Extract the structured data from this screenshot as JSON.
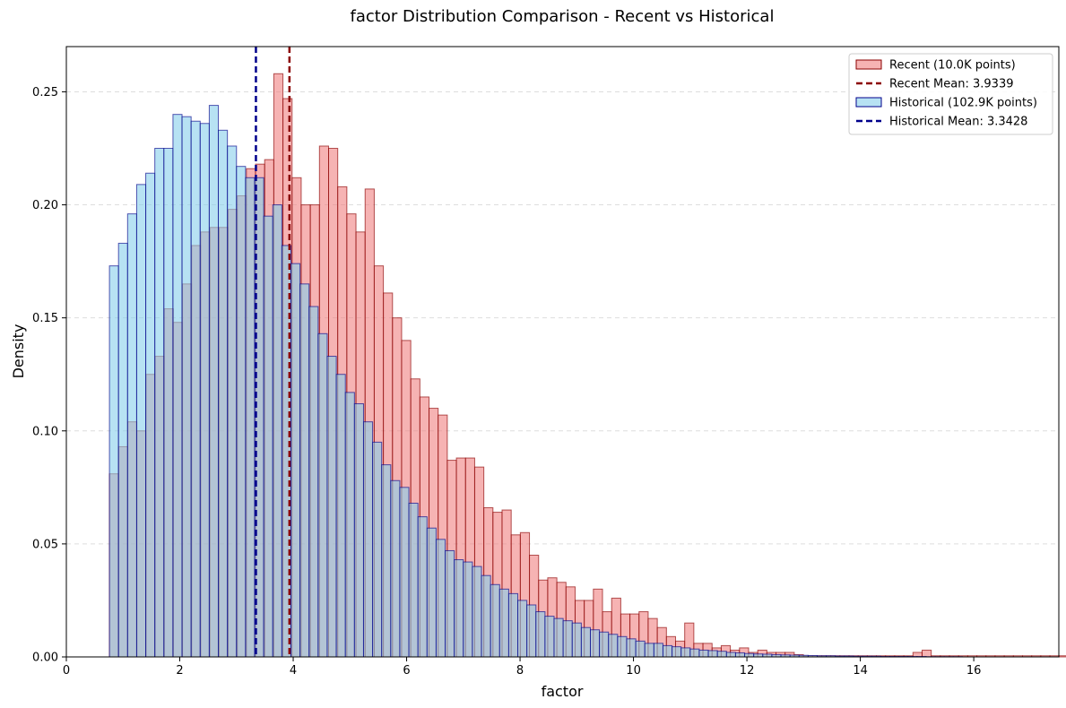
{
  "chart_data": {
    "type": "bar",
    "title": "factor Distribution Comparison - Recent vs Historical",
    "xlabel": "factor",
    "ylabel": "Density",
    "xlim": [
      0,
      17.5
    ],
    "ylim": [
      0,
      0.27
    ],
    "xticks": [
      0,
      2,
      4,
      6,
      8,
      10,
      12,
      14,
      16
    ],
    "yticks": [
      0.0,
      0.05,
      0.1,
      0.15,
      0.2,
      0.25
    ],
    "xtick_labels": [
      "0",
      "2",
      "4",
      "6",
      "8",
      "10",
      "12",
      "14",
      "16"
    ],
    "ytick_labels": [
      "0.00",
      "0.05",
      "0.10",
      "0.15",
      "0.20",
      "0.25"
    ],
    "grid": "y, dashed",
    "legend_position": "top-right",
    "series": [
      {
        "name": "Recent (10.0K points)",
        "kind": "histogram",
        "color": "#f08080",
        "edge_color": "#8b0000",
        "bin_start": 0.76,
        "bin_width": 0.161,
        "values": [
          0.081,
          0.093,
          0.104,
          0.1,
          0.125,
          0.133,
          0.154,
          0.148,
          0.165,
          0.182,
          0.188,
          0.19,
          0.19,
          0.198,
          0.204,
          0.216,
          0.218,
          0.22,
          0.258,
          0.247,
          0.212,
          0.2,
          0.2,
          0.226,
          0.225,
          0.208,
          0.196,
          0.188,
          0.207,
          0.173,
          0.161,
          0.15,
          0.14,
          0.123,
          0.115,
          0.11,
          0.107,
          0.087,
          0.088,
          0.088,
          0.084,
          0.066,
          0.064,
          0.065,
          0.054,
          0.055,
          0.045,
          0.034,
          0.035,
          0.033,
          0.031,
          0.025,
          0.025,
          0.03,
          0.02,
          0.026,
          0.019,
          0.019,
          0.02,
          0.017,
          0.013,
          0.009,
          0.007,
          0.015,
          0.006,
          0.006,
          0.004,
          0.005,
          0.003,
          0.004,
          0.002,
          0.003,
          0.002,
          0.002,
          0.002,
          0.001,
          0.0005,
          0.0005,
          0.0005,
          0.0005,
          0.0005,
          0.0005,
          0.0005,
          0.0005,
          0.0005,
          0.0005,
          0.0005,
          0.0005,
          0.002,
          0.003,
          0.0005,
          0.0005,
          0.0005,
          0.0005,
          0.0005,
          0.0005,
          0.0005,
          0.0005,
          0.0005,
          0.0005,
          0.0005,
          0.0005,
          0.0005,
          0.0005,
          0.0005
        ]
      },
      {
        "name": "Historical (102.9K points)",
        "kind": "histogram",
        "color": "#87ceeb",
        "edge_color": "#00008b",
        "bin_start": 0.76,
        "bin_width": 0.16,
        "values": [
          0.173,
          0.183,
          0.196,
          0.209,
          0.214,
          0.225,
          0.225,
          0.24,
          0.239,
          0.237,
          0.236,
          0.244,
          0.233,
          0.226,
          0.217,
          0.212,
          0.212,
          0.195,
          0.2,
          0.182,
          0.174,
          0.165,
          0.155,
          0.143,
          0.133,
          0.125,
          0.117,
          0.112,
          0.104,
          0.095,
          0.085,
          0.078,
          0.075,
          0.068,
          0.062,
          0.057,
          0.052,
          0.047,
          0.043,
          0.042,
          0.04,
          0.036,
          0.032,
          0.03,
          0.028,
          0.025,
          0.023,
          0.02,
          0.018,
          0.017,
          0.016,
          0.015,
          0.013,
          0.012,
          0.011,
          0.01,
          0.009,
          0.008,
          0.007,
          0.006,
          0.006,
          0.005,
          0.0045,
          0.004,
          0.0035,
          0.003,
          0.0028,
          0.0025,
          0.002,
          0.0018,
          0.0015,
          0.0013,
          0.0012,
          0.001,
          0.0009,
          0.0008,
          0.0007,
          0.0006,
          0.0005,
          0.0005,
          0.0004,
          0.0004,
          0.0003,
          0.0003,
          0.0003,
          0.0002,
          0.0002,
          0.0002,
          0.0002,
          0.0002,
          0.0001,
          0.0001,
          0.0001,
          0.0001
        ]
      }
    ],
    "reference_lines": [
      {
        "name": "Recent Mean: 3.9339",
        "x": 3.9339,
        "color": "#8b0000",
        "style": "dashed"
      },
      {
        "name": "Historical Mean: 3.3428",
        "x": 3.3428,
        "color": "#00008b",
        "style": "dashed"
      }
    ],
    "legend": [
      {
        "label": "Recent (10.0K points)",
        "kind": "patch",
        "color": "#f08080",
        "edge_color": "#8b0000"
      },
      {
        "label": "Recent Mean: 3.9339",
        "kind": "line",
        "color": "#8b0000"
      },
      {
        "label": "Historical (102.9K points)",
        "kind": "patch",
        "color": "#87ceeb",
        "edge_color": "#00008b"
      },
      {
        "label": "Historical Mean: 3.3428",
        "kind": "line",
        "color": "#00008b"
      }
    ]
  }
}
